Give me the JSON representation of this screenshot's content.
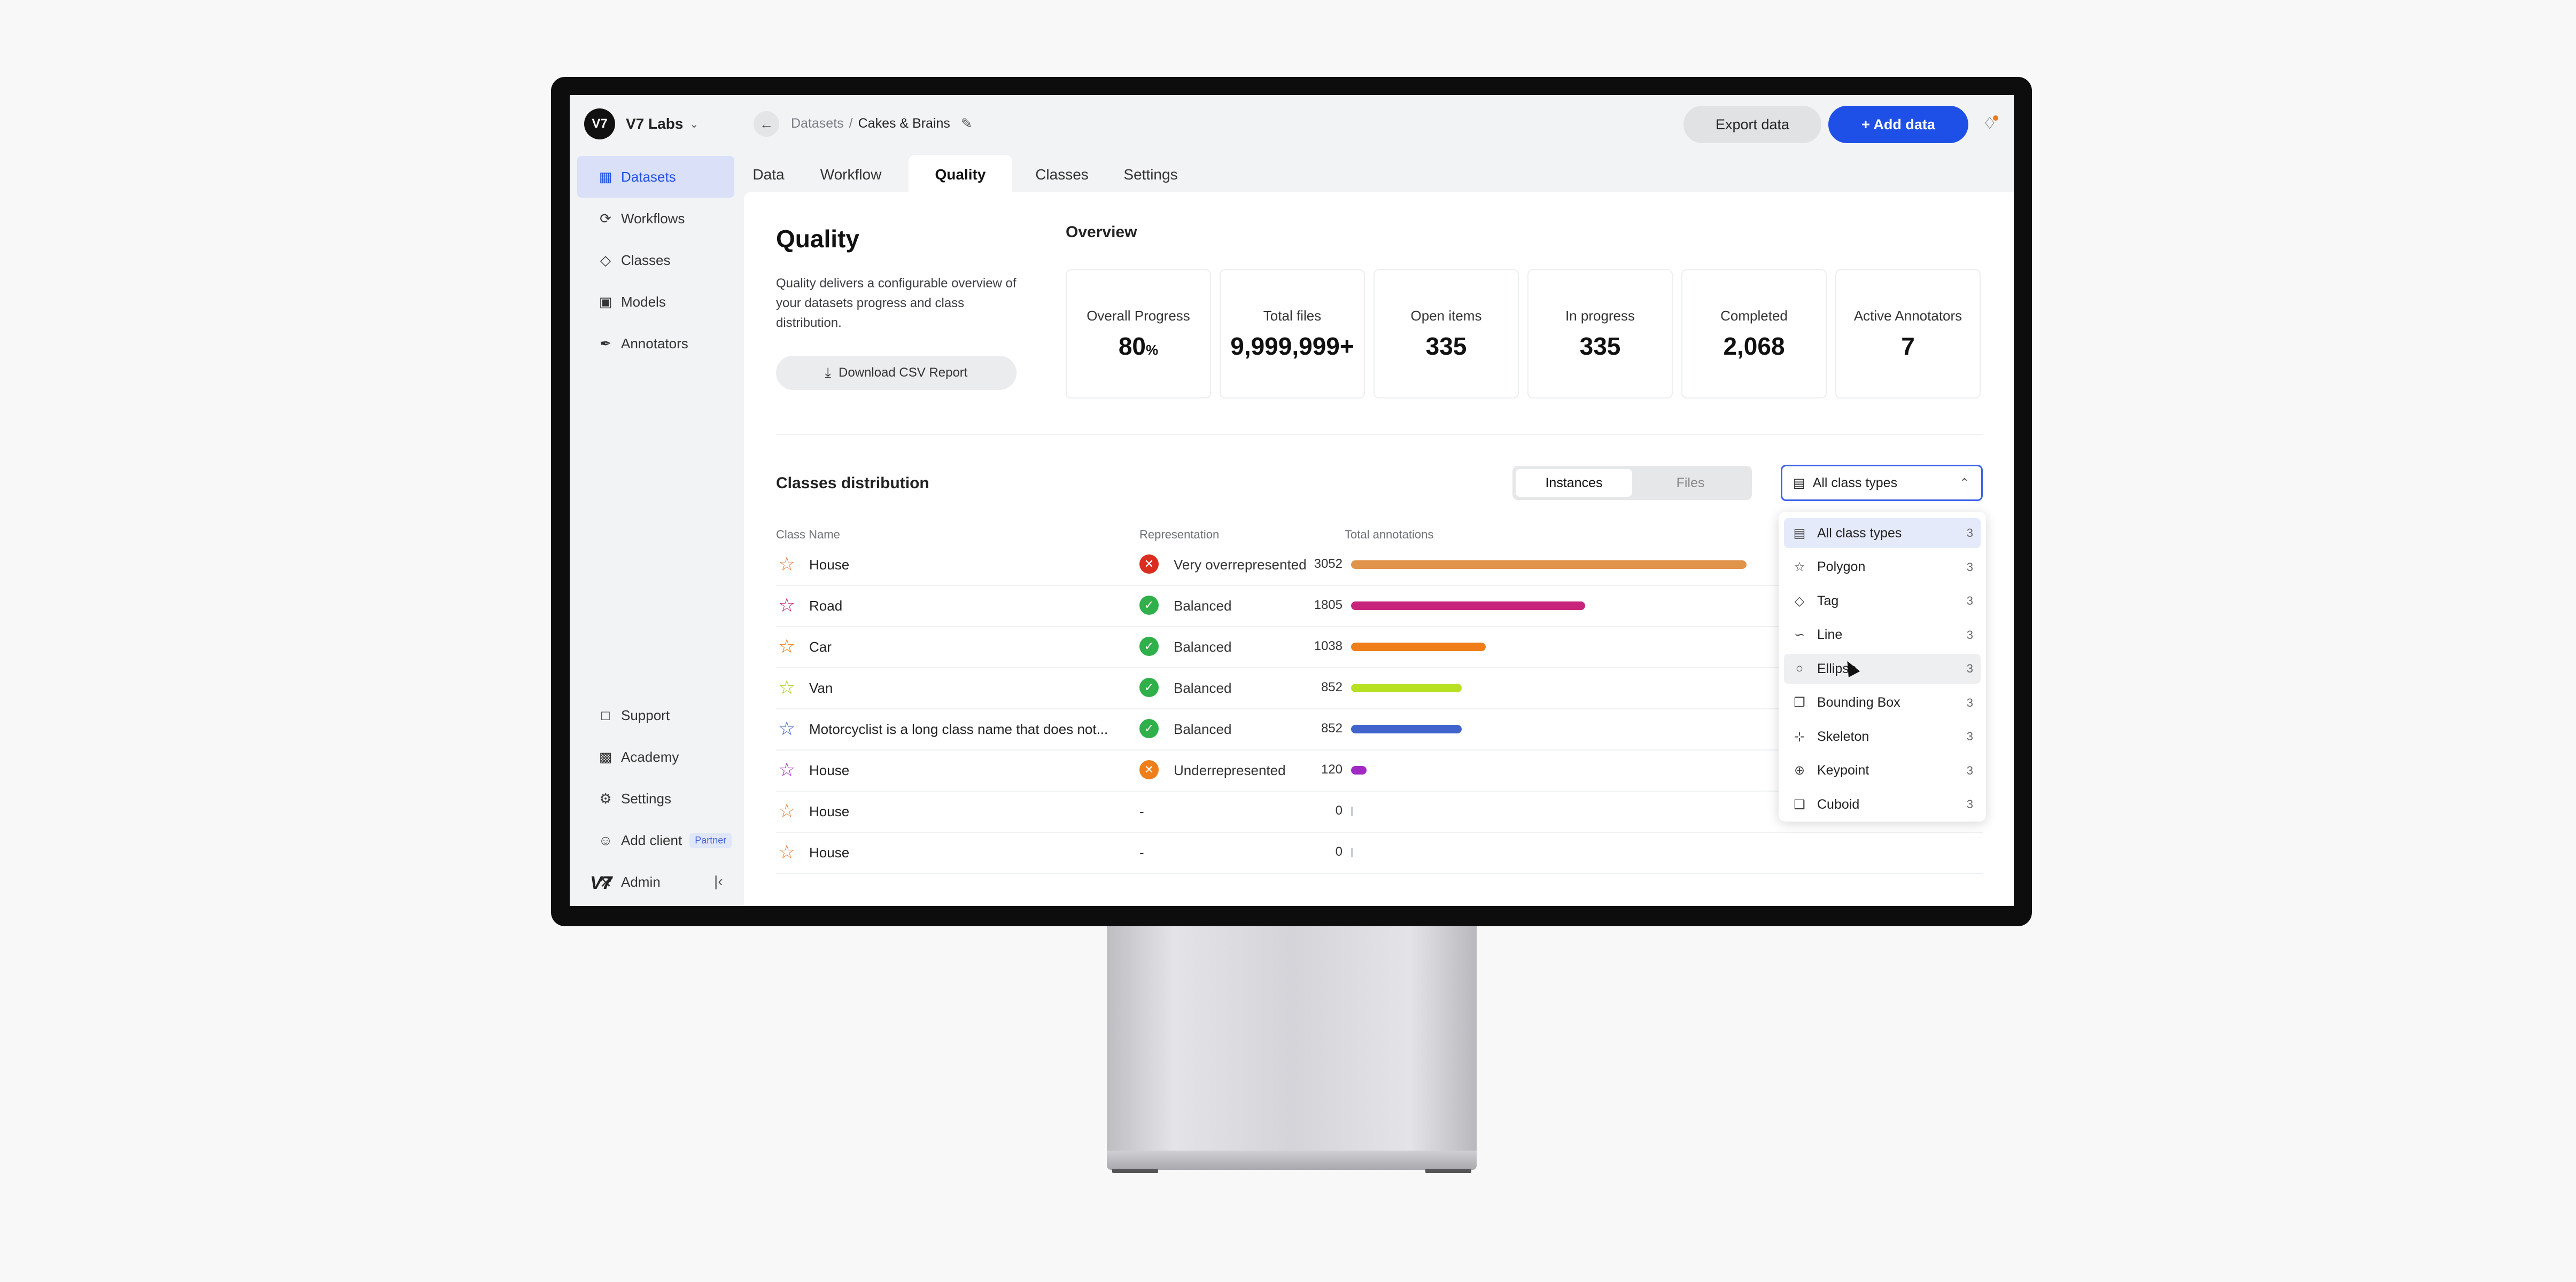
{
  "org": {
    "name": "V7 Labs",
    "logo_text": "V7"
  },
  "breadcrumb": {
    "parent": "Datasets",
    "separator": "/",
    "current": "Cakes & Brains"
  },
  "header": {
    "export_label": "Export data",
    "add_label": "Add data"
  },
  "sidebar": {
    "items": [
      {
        "label": "Datasets",
        "icon": "grid-icon",
        "active": true
      },
      {
        "label": "Workflows",
        "icon": "workflow-icon"
      },
      {
        "label": "Classes",
        "icon": "tag-icon"
      },
      {
        "label": "Models",
        "icon": "model-icon"
      },
      {
        "label": "Annotators",
        "icon": "pen-icon"
      }
    ],
    "bottom_items": [
      {
        "label": "Support",
        "icon": "chat-icon"
      },
      {
        "label": "Academy",
        "icon": "academy-icon"
      },
      {
        "label": "Settings",
        "icon": "gear-icon"
      },
      {
        "label": "Add client",
        "icon": "user-icon",
        "badge": "Partner"
      },
      {
        "label": "Admin",
        "icon": "wrench-icon"
      }
    ],
    "footer_logo": "V7"
  },
  "tabs": [
    {
      "label": "Data"
    },
    {
      "label": "Workflow"
    },
    {
      "label": "Quality",
      "active": true
    },
    {
      "label": "Classes"
    },
    {
      "label": "Settings"
    }
  ],
  "quality": {
    "title": "Quality",
    "description": "Quality delivers a configurable overview of your datasets progress and class distribution.",
    "download_label": "Download CSV Report"
  },
  "overview": {
    "title": "Overview",
    "cards": [
      {
        "label": "Overall Progress",
        "value": "80",
        "unit": "%"
      },
      {
        "label": "Total files",
        "value": "9,999,999+"
      },
      {
        "label": "Open items",
        "value": "335"
      },
      {
        "label": "In progress",
        "value": "335"
      },
      {
        "label": "Completed",
        "value": "2,068"
      },
      {
        "label": "Active Annotators",
        "value": "7"
      }
    ]
  },
  "distribution": {
    "title": "Classes distribution",
    "toggle": {
      "instances": "Instances",
      "files": "Files",
      "selected": "Instances"
    },
    "filter_value": "All class types",
    "columns": {
      "name": "Class Name",
      "representation": "Representation",
      "total": "Total annotations"
    },
    "max_value": 3052,
    "rows": [
      {
        "name": "House",
        "star_color": "#e8803a",
        "status": "Very overrepresented",
        "status_icon": "x",
        "status_color": "#d92d20",
        "value": 3052,
        "bar_color": "#e0944a"
      },
      {
        "name": "Road",
        "star_color": "#c2247a",
        "status": "Balanced",
        "status_icon": "check",
        "status_color": "#2fb04a",
        "value": 1805,
        "bar_color": "#c9247c"
      },
      {
        "name": "Car",
        "star_color": "#ee7d1a",
        "status": "Balanced",
        "status_icon": "check",
        "status_color": "#2fb04a",
        "value": 1038,
        "bar_color": "#ef7d18"
      },
      {
        "name": "Van",
        "star_color": "#a8d41a",
        "status": "Balanced",
        "status_icon": "check",
        "status_color": "#2fb04a",
        "value": 852,
        "bar_color": "#b7e020"
      },
      {
        "name": "Motorcyclist is a long class name that does not...",
        "star_color": "#3d62c9",
        "status": "Balanced",
        "status_icon": "check",
        "status_color": "#2fb04a",
        "value": 852,
        "bar_color": "#4064cc"
      },
      {
        "name": "House",
        "star_color": "#a12ac4",
        "status": "Underrepresented",
        "status_icon": "x",
        "status_color": "#ee7d1a",
        "value": 120,
        "bar_color": "#a12ac4"
      },
      {
        "name": "House",
        "star_color": "#e8803a",
        "status": "-",
        "value": 0
      },
      {
        "name": "House",
        "star_color": "#e8803a",
        "status": "-",
        "value": 0
      }
    ]
  },
  "class_type_dropdown": {
    "options": [
      {
        "label": "All class types",
        "count": "3",
        "icon": "all-types-icon",
        "selected": true
      },
      {
        "label": "Polygon",
        "count": "3",
        "icon": "polygon-icon"
      },
      {
        "label": "Tag",
        "count": "3",
        "icon": "tag-icon"
      },
      {
        "label": "Line",
        "count": "3",
        "icon": "line-icon"
      },
      {
        "label": "Ellipse",
        "count": "3",
        "icon": "ellipse-icon",
        "hovered": true
      },
      {
        "label": "Bounding Box",
        "count": "3",
        "icon": "bounding-box-icon"
      },
      {
        "label": "Skeleton",
        "count": "3",
        "icon": "skeleton-icon"
      },
      {
        "label": "Keypoint",
        "count": "3",
        "icon": "keypoint-icon"
      },
      {
        "label": "Cuboid",
        "count": "3",
        "icon": "cuboid-icon"
      }
    ]
  },
  "colors": {
    "accent": "#1e4fe6",
    "sidebar_active_bg": "#d9e0f7"
  }
}
